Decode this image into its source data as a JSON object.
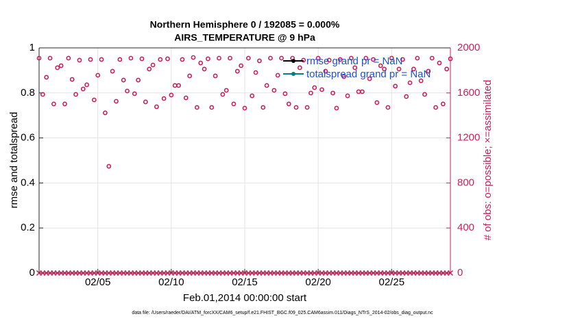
{
  "chart_data": {
    "type": "obs-diagnostic",
    "title": "Northern Hemisphere 0 / 192085 = 0.000%",
    "subtitle": "AIRS_TEMPERATURE @ 9 hPa",
    "y_label": "rmse and totalspread",
    "y2_label": "# of obs: o=possible; ×=assimilated",
    "x_label": "Feb.01,2014 00:00:00 start",
    "footnote": "data file: /Users/raeder/DAI/ATM_forcXX/CAM6_setup/f.e21.FHIST_BGC.f09_025.CAM6assim.011/Diags_NTrS_2014-02/obs_diag_output.nc",
    "xlim": [
      1,
      29
    ],
    "xticks": [
      {
        "value": 5,
        "label": "02/05"
      },
      {
        "value": 10,
        "label": "02/10"
      },
      {
        "value": 15,
        "label": "02/15"
      },
      {
        "value": 20,
        "label": "02/20"
      },
      {
        "value": 25,
        "label": "02/25"
      }
    ],
    "ylim": [
      0,
      1
    ],
    "yticks": [
      0,
      0.2,
      0.4,
      0.6,
      0.8,
      1
    ],
    "y2lim": [
      0,
      2000
    ],
    "y2ticks": [
      0,
      400,
      800,
      1200,
      1600,
      2000
    ],
    "y2_color": "#cc1f5a",
    "grid": true,
    "legend": "top-right",
    "series": [
      {
        "name": "rmse grand pr = NaN",
        "color": "#000000"
      },
      {
        "name": "totalspread grand pr = NaN",
        "color": "#008080"
      }
    ],
    "x": [
      1,
      1.25,
      1.5,
      1.75,
      2,
      2.25,
      2.5,
      2.75,
      3,
      3.25,
      3.5,
      3.75,
      4,
      4.25,
      4.5,
      4.75,
      5,
      5.25,
      5.5,
      5.75,
      6,
      6.25,
      6.5,
      6.75,
      7,
      7.25,
      7.5,
      7.75,
      8,
      8.25,
      8.5,
      8.75,
      9,
      9.25,
      9.5,
      9.75,
      10,
      10.25,
      10.5,
      10.75,
      11,
      11.25,
      11.5,
      11.75,
      12,
      12.25,
      12.5,
      12.75,
      13,
      13.25,
      13.5,
      13.75,
      14,
      14.25,
      14.5,
      14.75,
      15,
      15.25,
      15.5,
      15.75,
      16,
      16.25,
      16.5,
      16.75,
      17,
      17.25,
      17.5,
      17.75,
      18,
      18.25,
      18.5,
      18.75,
      19,
      19.25,
      19.5,
      19.75,
      20,
      20.25,
      20.5,
      20.75,
      21,
      21.25,
      21.5,
      21.75,
      22,
      22.25,
      22.5,
      22.75,
      23,
      23.25,
      23.5,
      23.75,
      24,
      24.25,
      24.5,
      24.75,
      25,
      25.25,
      25.5,
      25.75,
      26,
      26.25,
      26.5,
      26.75,
      27,
      27.25,
      27.5,
      27.75,
      28,
      28.25,
      28.5,
      28.75,
      29
    ],
    "obs_possible": {
      "axis": "y2",
      "color": "#cc1f5a",
      "values": [
        1909,
        1587,
        1739,
        1909,
        1502,
        1824,
        1842,
        1502,
        1909,
        1720,
        1587,
        1891,
        1635,
        1672,
        1897,
        1538,
        1757,
        1897,
        1423,
        948,
        1793,
        1526,
        1897,
        1714,
        1617,
        1909,
        1593,
        1714,
        1903,
        1520,
        1812,
        1848,
        1477,
        1897,
        1550,
        1903,
        1581,
        1666,
        1666,
        1897,
        1556,
        1751,
        1915,
        1471,
        1866,
        1812,
        1903,
        1471,
        1751,
        1909,
        1587,
        1623,
        1909,
        1502,
        1793,
        1842,
        1465,
        1909,
        1574,
        1781,
        1885,
        1471,
        1666,
        1909,
        1623,
        1757,
        1909,
        1593,
        1502,
        1909,
        1471,
        1824,
        1891,
        1471,
        1599,
        1647,
        1909,
        1629,
        1793,
        1891,
        1599,
        1465,
        1897,
        1745,
        1574,
        1909,
        1824,
        1611,
        1611,
        1909,
        1726,
        1897,
        1514,
        1842,
        1812,
        1471,
        1909,
        1660,
        1812,
        1897,
        1568,
        1690,
        1812,
        1909,
        1708,
        1587,
        1793,
        1909,
        1471,
        1866,
        1502,
        1812,
        1903
      ]
    },
    "obs_assimilated": {
      "axis": "y2",
      "color": "#cc1f5a",
      "values": [
        0,
        0,
        0,
        0,
        0,
        0,
        0,
        0,
        0,
        0,
        0,
        0,
        0,
        0,
        0,
        0,
        0,
        0,
        0,
        0,
        0,
        0,
        0,
        0,
        0,
        0,
        0,
        0,
        0,
        0,
        0,
        0,
        0,
        0,
        0,
        0,
        0,
        0,
        0,
        0,
        0,
        0,
        0,
        0,
        0,
        0,
        0,
        0,
        0,
        0,
        0,
        0,
        0,
        0,
        0,
        0,
        0,
        0,
        0,
        0,
        0,
        0,
        0,
        0,
        0,
        0,
        0,
        0,
        0,
        0,
        0,
        0,
        0,
        0,
        0,
        0,
        0,
        0,
        0,
        0,
        0,
        0,
        0,
        0,
        0,
        0,
        0,
        0,
        0,
        0,
        0,
        0,
        0,
        0,
        0,
        0,
        0,
        0,
        0,
        0,
        0,
        0,
        0,
        0,
        0,
        0,
        0,
        0,
        0,
        0,
        0,
        0,
        0
      ]
    }
  }
}
